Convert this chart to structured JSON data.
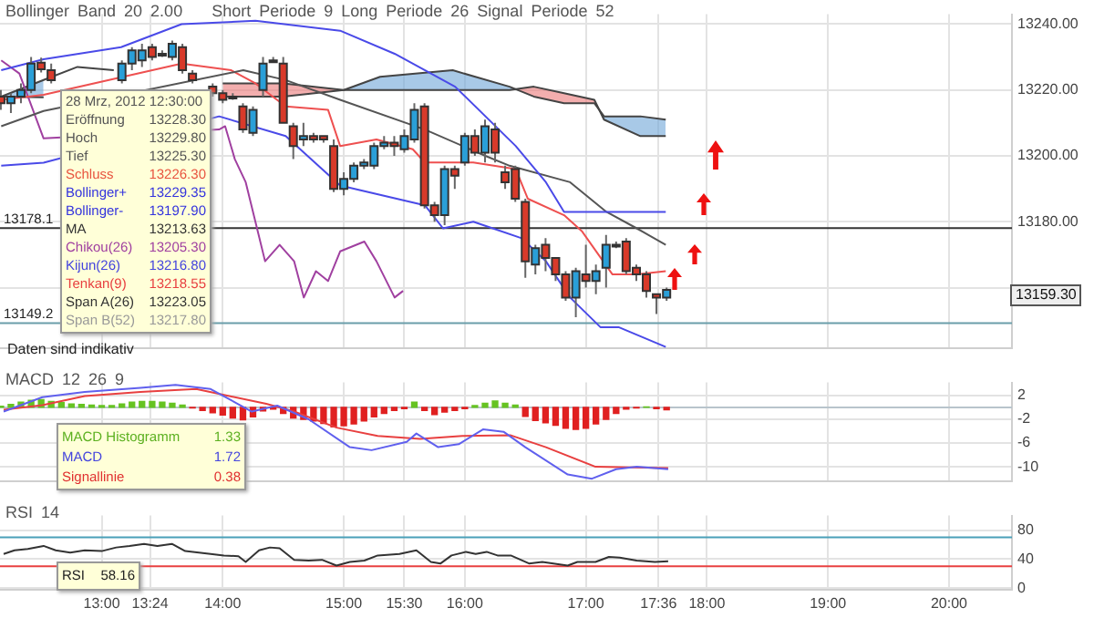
{
  "chart_data": [
    {
      "type": "candlestick",
      "title": "Bollinger Band 20 2.00",
      "subtitle": "Short Periode 9 Long Periode 26 Signal Periode 52",
      "x": [
        12.167,
        12.25,
        12.333,
        12.417,
        12.5,
        12.583,
        13.167,
        13.25,
        13.333,
        13.417,
        13.5,
        13.583,
        13.667,
        13.75,
        13.917,
        14,
        14.083,
        14.167,
        14.25,
        14.333,
        14.417,
        14.5,
        14.583,
        14.667,
        14.75,
        14.833,
        14.917,
        15,
        15.083,
        15.167,
        15.25,
        15.333,
        15.417,
        15.5,
        15.583,
        15.667,
        15.75,
        15.833,
        15.917,
        16,
        16.083,
        16.167,
        16.25,
        16.333,
        16.417,
        16.5,
        16.583,
        16.667,
        16.75,
        16.833,
        16.917,
        17,
        17.083,
        17.167,
        17.25,
        17.333,
        17.417,
        17.5,
        17.583,
        17.667
      ],
      "ohlc": [
        [
          13218,
          13220,
          13214,
          13216
        ],
        [
          13216,
          13219,
          13213,
          13218
        ],
        [
          13218,
          13222,
          13216,
          13220
        ],
        [
          13220,
          13230,
          13219,
          13228
        ],
        [
          13228.3,
          13229.8,
          13225.3,
          13226.3
        ],
        [
          13226,
          13228,
          13222,
          13223
        ],
        [
          13223,
          13229,
          13222,
          13228
        ],
        [
          13228,
          13233,
          13226,
          13232
        ],
        [
          13229,
          13234,
          13227,
          13232
        ],
        [
          13233,
          13234,
          13229,
          13230
        ],
        [
          13231,
          13232,
          13230,
          13231
        ],
        [
          13230,
          13235,
          13229,
          13234
        ],
        [
          13233,
          13234,
          13225,
          13226
        ],
        [
          13225,
          13226,
          13222,
          13223
        ],
        [
          13221,
          13222,
          13218,
          13219
        ],
        [
          13219,
          13220,
          13216,
          13217
        ],
        [
          13218,
          13219,
          13217,
          13218
        ],
        [
          13215,
          13216,
          13207,
          13208
        ],
        [
          13207,
          13215,
          13206,
          13214
        ],
        [
          13220,
          13230,
          13218,
          13228
        ],
        [
          13229,
          13230,
          13229,
          13229
        ],
        [
          13228,
          13230,
          13210,
          13210
        ],
        [
          13209,
          13210,
          13199,
          13203
        ],
        [
          13205,
          13210,
          13203,
          13206
        ],
        [
          13206,
          13207,
          13204,
          13205
        ],
        [
          13206,
          13206,
          13204,
          13205
        ],
        [
          13203,
          13205,
          13189,
          13190
        ],
        [
          13190,
          13195,
          13188,
          13193
        ],
        [
          13193,
          13198,
          13192,
          13197
        ],
        [
          13197,
          13199,
          13196,
          13198
        ],
        [
          13197,
          13204,
          13196,
          13203
        ],
        [
          13203,
          13206,
          13202,
          13204
        ],
        [
          13204,
          13206,
          13200,
          13203
        ],
        [
          13202,
          13208,
          13201,
          13206
        ],
        [
          13205,
          13216,
          13204,
          13214
        ],
        [
          13215,
          13216,
          13184,
          13185
        ],
        [
          13185,
          13186,
          13180,
          13182
        ],
        [
          13182,
          13197,
          13179,
          13196
        ],
        [
          13196,
          13197,
          13190,
          13194
        ],
        [
          13198,
          13207,
          13197,
          13206
        ],
        [
          13206,
          13208,
          13200,
          13201
        ],
        [
          13201,
          13211,
          13198,
          13209
        ],
        [
          13208,
          13210,
          13198,
          13201
        ],
        [
          13195,
          13197,
          13190,
          13192
        ],
        [
          13196,
          13197,
          13186,
          13187
        ],
        [
          13186,
          13187,
          13163,
          13168
        ],
        [
          13167,
          13173,
          13164,
          13172
        ],
        [
          13173,
          13175,
          13165,
          13169
        ],
        [
          13169,
          13169,
          13162,
          13164
        ],
        [
          13164,
          13165,
          13156,
          13157
        ],
        [
          13157,
          13166,
          13151,
          13165
        ],
        [
          13164,
          13173,
          13160,
          13162
        ],
        [
          13162,
          13167,
          13158,
          13165
        ],
        [
          13166,
          13176,
          13160,
          13173
        ],
        [
          13173,
          13174,
          13172,
          13173
        ],
        [
          13174,
          13175,
          13164,
          13165
        ],
        [
          13166,
          13167,
          13162,
          13164
        ],
        [
          13164,
          13165,
          13157,
          13159
        ],
        [
          13158,
          13158,
          13152,
          13157
        ],
        [
          13157,
          13160,
          13156,
          13159.3
        ]
      ],
      "colors": [
        "#d83a2a",
        "#2a9fd8",
        "#2a9fd8",
        "#2a9fd8",
        "#d83a2a",
        "#d83a2a",
        "#2a9fd8",
        "#2a9fd8",
        "#2a9fd8",
        "#d83a2a",
        "#222222",
        "#2a9fd8",
        "#d83a2a",
        "#d83a2a",
        "#d83a2a",
        "#d83a2a",
        "#222222",
        "#d83a2a",
        "#2a9fd8",
        "#2a9fd8",
        "#222222",
        "#d83a2a",
        "#d83a2a",
        "#2a9fd8",
        "#d83a2a",
        "#d83a2a",
        "#d83a2a",
        "#2a9fd8",
        "#2a9fd8",
        "#2a9fd8",
        "#2a9fd8",
        "#2a9fd8",
        "#d83a2a",
        "#2a9fd8",
        "#2a9fd8",
        "#d83a2a",
        "#d83a2a",
        "#2a9fd8",
        "#d83a2a",
        "#2a9fd8",
        "#d83a2a",
        "#2a9fd8",
        "#d83a2a",
        "#d83a2a",
        "#d83a2a",
        "#d83a2a",
        "#2a9fd8",
        "#d83a2a",
        "#d83a2a",
        "#d83a2a",
        "#2a9fd8",
        "#d83a2a",
        "#2a9fd8",
        "#2a9fd8",
        "#222222",
        "#d83a2a",
        "#d83a2a",
        "#d83a2a",
        "#d83a2a",
        "#2a9fd8"
      ],
      "series": [
        {
          "type": "line",
          "color": "#4a4ae8",
          "x": [
            12.17,
            12.52,
            13.16,
            13.66,
            14.27,
            14.97,
            15.42,
            15.92,
            16.42,
            16.67,
            16.82,
            17.66
          ],
          "values": [
            13226,
            13229.35,
            13233,
            13240,
            13241,
            13238,
            13231,
            13221,
            13203,
            13192,
            13183,
            13183
          ]
        },
        {
          "type": "line",
          "color": "#4a4ae8",
          "x": [
            12.17,
            12.52,
            13.97,
            14.52,
            14.97,
            15.67,
            15.82,
            16.07,
            16.47,
            16.67,
            16.87,
            17.12,
            17.27,
            17.66
          ],
          "values": [
            13197,
            13197.9,
            13212,
            13206,
            13191,
            13185,
            13178,
            13180,
            13175,
            13168,
            13157,
            13148,
            13148,
            13142
          ]
        },
        {
          "type": "line",
          "color": "#555555",
          "x": [
            12.17,
            12.52,
            14.17,
            14.52,
            14.97,
            15.67,
            16.17,
            16.37,
            16.87,
            17.17,
            17.42,
            17.66
          ],
          "values": [
            13209,
            13213.63,
            13226,
            13223,
            13217,
            13208,
            13200,
            13197,
            13192,
            13183,
            13178,
            13173
          ]
        },
        {
          "type": "line",
          "color": "#ee5050",
          "x": [
            12.17,
            12.52,
            13.66,
            14.07,
            14.27,
            14.52,
            14.87,
            14.97,
            15.27,
            15.57,
            15.67,
            16.07,
            16.42,
            16.52,
            16.82,
            16.97,
            17.22,
            17.42,
            17.66
          ],
          "values": [
            13217,
            13218.55,
            13228,
            13226,
            13222,
            13215,
            13214,
            13203,
            13205,
            13202,
            13198,
            13198,
            13196,
            13187,
            13182,
            13177,
            13164,
            13164,
            13165
          ]
        },
        {
          "type": "line",
          "color": "#a040a0",
          "x": [
            12.17,
            12.32,
            12.52,
            13.97,
            14.02,
            14.1,
            14.19,
            14.27,
            14.35,
            14.47,
            14.59,
            14.67,
            14.77,
            14.87,
            14.97,
            15.17,
            15.27,
            15.42,
            15.49
          ],
          "values": [
            13229,
            13225,
            13205.3,
            13208,
            13209,
            13199,
            13192,
            13180,
            13168,
            13173,
            13168,
            13157,
            13165,
            13162,
            13171,
            13174,
            13168,
            13157,
            13159
          ]
        },
        {
          "type": "line",
          "color": "#444444",
          "x": [
            12.17,
            12.52,
            12.8,
            13.1,
            13.5,
            14.0,
            14.5,
            15.0,
            15.3,
            15.9,
            16.37,
            16.57,
            16.82,
            17.07,
            17.15,
            17.45,
            17.66
          ],
          "values": [
            13218,
            13223.05,
            13227,
            13226,
            null,
            13218,
            13218,
            13220,
            13224,
            13226,
            13221,
            13218,
            13216,
            13216,
            13212,
            13212,
            13211
          ],
          "lower": [
            13218,
            13217.8,
            null,
            null,
            null,
            13222,
            13222,
            13220,
            13220,
            13220,
            13220,
            13221,
            13219,
            13217,
            13211,
            13206,
            13206
          ],
          "upper": [
            13218,
            13223.05,
            null,
            null,
            null,
            13218,
            13218,
            13220,
            13224,
            13226,
            13221,
            13218,
            13216,
            13216,
            13212,
            13212,
            13211
          ]
        },
        {
          "type": "line",
          "color": "#444444",
          "x": [
            12.17,
            12.52,
            12.8,
            13.1,
            13.5,
            14.0,
            14.5,
            15.0,
            15.3,
            15.9,
            16.37,
            16.57,
            16.82,
            17.07,
            17.15,
            17.45,
            17.66
          ],
          "values": [
            13218,
            13217.8,
            null,
            null,
            null,
            13222,
            13222,
            13220,
            13220,
            13220,
            13220,
            13221,
            13219,
            13217,
            13211,
            13206,
            13206
          ]
        }
      ],
      "xlim": [
        12.16,
        20.52
      ],
      "ylim": [
        13141.5,
        13243
      ],
      "xticks": [
        13,
        13.4,
        14,
        15,
        15.5,
        16,
        17,
        17.6,
        18,
        19,
        20
      ],
      "yticks": [
        {
          "value": 13160,
          "label": null
        },
        {
          "value": 13180,
          "label": "13180.00"
        },
        {
          "value": 13200,
          "label": "13200.00"
        },
        {
          "value": 13220,
          "label": "13220.00"
        },
        {
          "value": 13240,
          "label": "13240.00"
        }
      ],
      "tick_labels": "y",
      "grid": true,
      "legend": false,
      "ref_lines": [
        {
          "axis": "y",
          "value": 13178.1,
          "label": "13178.1",
          "color": "#333333"
        },
        {
          "axis": "y",
          "value": 13149.2,
          "label": "13149.2",
          "color": "#6a9eaa"
        }
      ],
      "annotations": [
        "28 Mrz, 2012 12:30:00",
        "Eröffnung 13228.30",
        "Hoch 13229.80",
        "Tief 13225.30",
        "Schluss 13226.30",
        "Bollinger+ 13229.35",
        "Bollinger- 13197.90",
        "MA 13213.63",
        "Chikou(26) 13205.30",
        "Kijun(26) 13216.80",
        "Tenkan(9) 13218.55",
        "Span A(26) 13223.05",
        "Span B(52) 13217.80",
        "Daten sind indikativ",
        "13159.30"
      ]
    },
    {
      "type": "bar",
      "title": "MACD 12 26 9",
      "series": [
        {
          "type": "bar",
          "x": [
            12.167,
            12.25,
            12.333,
            12.417,
            12.5,
            12.583,
            12.667,
            12.75,
            12.833,
            12.917,
            13,
            13.083,
            13.167,
            13.25,
            13.333,
            13.417,
            13.5,
            13.583,
            13.667,
            13.75,
            13.833,
            13.917,
            14,
            14.083,
            14.167,
            14.25,
            14.333,
            14.417,
            14.5,
            14.583,
            14.667,
            14.75,
            14.833,
            14.917,
            15,
            15.083,
            15.167,
            15.25,
            15.333,
            15.417,
            15.5,
            15.583,
            15.667,
            15.75,
            15.833,
            15.917,
            16,
            16.083,
            16.167,
            16.25,
            16.333,
            16.417,
            16.5,
            16.583,
            16.667,
            16.75,
            16.833,
            16.917,
            17,
            17.083,
            17.167,
            17.25,
            17.333,
            17.417,
            17.5,
            17.583,
            17.667
          ],
          "values": [
            0.2,
            0.5,
            0.9,
            1.2,
            1.33,
            1.0,
            0.8,
            0.6,
            0.5,
            0.4,
            0.3,
            0.3,
            0.6,
            0.9,
            1.0,
            1.0,
            0.9,
            0.7,
            0.4,
            -0.1,
            -0.5,
            -0.9,
            -1.3,
            -1.8,
            -2.1,
            -1.6,
            -0.6,
            -0.3,
            -1.0,
            -1.8,
            -2.0,
            -2.3,
            -2.7,
            -3.3,
            -3.1,
            -2.8,
            -2.3,
            -1.6,
            -1.0,
            -0.5,
            -0.2,
            0.9,
            -0.5,
            -1.2,
            -0.8,
            -0.5,
            -0.2,
            0.3,
            0.7,
            1.1,
            0.7,
            0.4,
            -1.5,
            -2.2,
            -2.6,
            -3.0,
            -3.5,
            -3.7,
            -3.5,
            -2.8,
            -2.0,
            -1.0,
            -0.3,
            -0.1,
            0.1,
            -0.2,
            -0.4
          ],
          "colors": [
            "#66c322",
            "#66c322",
            "#66c322",
            "#66c322",
            "#66c322",
            "#66c322",
            "#66c322",
            "#66c322",
            "#66c322",
            "#66c322",
            "#66c322",
            "#66c322",
            "#66c322",
            "#66c322",
            "#66c322",
            "#66c322",
            "#66c322",
            "#66c322",
            "#66c322",
            "#e02020",
            "#e02020",
            "#e02020",
            "#e02020",
            "#e02020",
            "#e02020",
            "#e02020",
            "#e02020",
            "#e02020",
            "#e02020",
            "#e02020",
            "#e02020",
            "#e02020",
            "#e02020",
            "#e02020",
            "#e02020",
            "#e02020",
            "#e02020",
            "#e02020",
            "#e02020",
            "#e02020",
            "#e02020",
            "#66c322",
            "#e02020",
            "#e02020",
            "#e02020",
            "#e02020",
            "#e02020",
            "#66c322",
            "#66c322",
            "#66c322",
            "#66c322",
            "#66c322",
            "#e02020",
            "#e02020",
            "#e02020",
            "#e02020",
            "#e02020",
            "#e02020",
            "#e02020",
            "#e02020",
            "#e02020",
            "#e02020",
            "#e02020",
            "#e02020",
            "#66c322",
            "#e02020",
            "#e02020"
          ]
        },
        {
          "type": "line",
          "color": "#6060ee",
          "x": [
            12.19,
            12.51,
            12.86,
            13.32,
            13.61,
            13.9,
            14.24,
            14.45,
            14.71,
            15.05,
            15.23,
            15.52,
            15.6,
            15.78,
            15.95,
            16.15,
            16.32,
            16.5,
            16.85,
            17.05,
            17.25,
            17.42,
            17.68
          ],
          "values": [
            -0.7,
            1.72,
            2.6,
            3.3,
            3.8,
            3.1,
            -0.7,
            0.3,
            -2,
            -6.7,
            -7.2,
            -5.8,
            -4.4,
            -6.7,
            -6.2,
            -3.7,
            -4.1,
            -6.7,
            -11.3,
            -12,
            -10.4,
            -10,
            -10.4
          ]
        },
        {
          "type": "line",
          "color": "#e84040",
          "x": [
            12.19,
            12.51,
            12.86,
            13.32,
            13.78,
            14.01,
            14.36,
            14.59,
            14.94,
            15.28,
            15.63,
            15.98,
            16.38,
            16.67,
            17.08,
            17.37,
            17.68
          ],
          "values": [
            -0.4,
            0.38,
            1.9,
            2.6,
            3.1,
            2.1,
            0.6,
            -0.7,
            -3.4,
            -4.8,
            -5.3,
            -4.8,
            -4.7,
            -6.7,
            -10,
            -10.1,
            -10.2
          ]
        }
      ],
      "xlim": [
        12.16,
        20.52
      ],
      "ylim": [
        -12.5,
        4.2
      ],
      "xticks": [
        13,
        13.4,
        14,
        15,
        15.5,
        16,
        17,
        17.6,
        18,
        19,
        20
      ],
      "yticks": [
        2,
        -2,
        -6,
        -10
      ],
      "tick_labels": "y",
      "grid": true,
      "legend": false,
      "ref_lines": [
        {
          "axis": "y",
          "value": 0,
          "color": "#b8c4cc"
        }
      ],
      "annotations": [
        "MACD Histogramm 1.33",
        "MACD 1.72",
        "Signallinie 0.38"
      ]
    },
    {
      "type": "line",
      "title": "RSI 14",
      "x": [
        12.19,
        12.28,
        12.39,
        12.52,
        12.62,
        12.74,
        12.86,
        13.0,
        13.12,
        13.23,
        13.35,
        13.46,
        13.58,
        13.69,
        13.9,
        14.01,
        14.13,
        14.19,
        14.3,
        14.39,
        14.47,
        14.59,
        14.71,
        14.82,
        14.94,
        15.05,
        15.17,
        15.28,
        15.46,
        15.6,
        15.72,
        15.8,
        15.89,
        16.01,
        16.09,
        16.18,
        16.27,
        16.38,
        16.53,
        16.64,
        16.85,
        16.93,
        17.08,
        17.19,
        17.28,
        17.42,
        17.57,
        17.68
      ],
      "values": [
        47,
        52,
        54,
        58.16,
        52,
        49,
        52,
        51,
        56,
        58,
        61,
        58,
        61,
        51,
        47,
        45,
        44,
        36,
        52,
        56,
        55,
        39,
        38,
        39,
        31,
        36,
        38,
        45,
        47,
        52,
        36,
        34,
        45,
        50,
        47,
        50,
        45,
        45,
        34,
        36,
        31,
        36,
        36,
        43,
        42,
        38,
        36,
        37
      ],
      "color": "#333333",
      "xlim": [
        12.16,
        20.52
      ],
      "ylim": [
        -2,
        100
      ],
      "xticks": [
        {
          "value": 13,
          "label": "13:00"
        },
        {
          "value": 13.4,
          "label": "13:24"
        },
        {
          "value": 14,
          "label": "14:00"
        },
        {
          "value": 15,
          "label": "15:00"
        },
        {
          "value": 15.5,
          "label": "15:30"
        },
        {
          "value": 16,
          "label": "16:00"
        },
        {
          "value": 17,
          "label": "17:00"
        },
        {
          "value": 17.6,
          "label": "17:36"
        },
        {
          "value": 18,
          "label": "18:00"
        },
        {
          "value": 19,
          "label": "19:00"
        },
        {
          "value": 20,
          "label": "20:00"
        }
      ],
      "yticks": [
        0,
        40,
        80
      ],
      "grid": true,
      "legend": false,
      "ref_lines": [
        {
          "axis": "y",
          "value": 70,
          "color": "#4aa0b8"
        },
        {
          "axis": "y",
          "value": 30,
          "color": "#e84040"
        }
      ],
      "annotations": [
        "RSI 58.16"
      ]
    }
  ]
}
